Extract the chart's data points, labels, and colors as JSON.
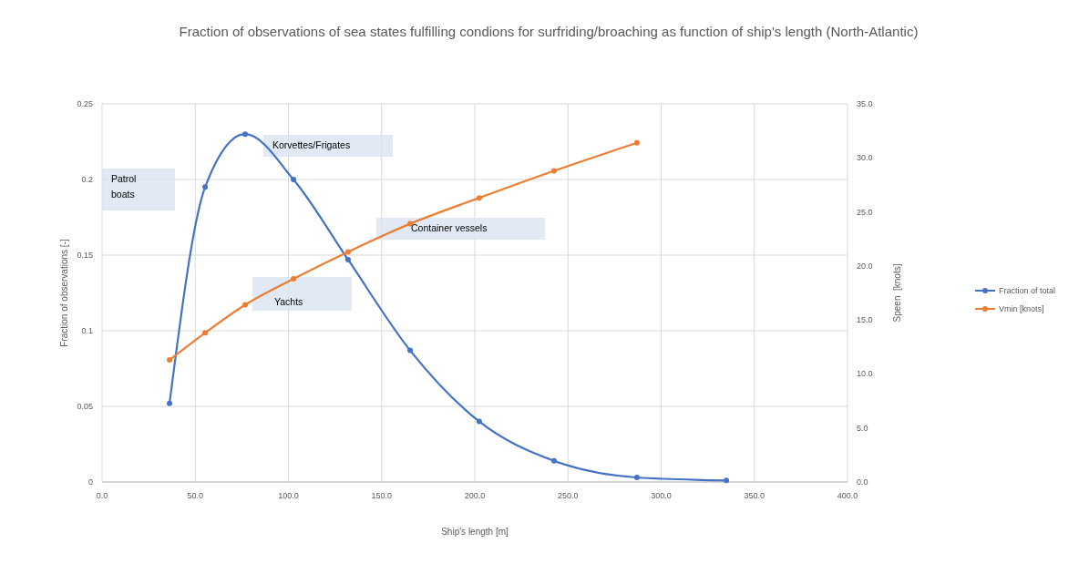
{
  "chart_data": {
    "type": "line",
    "title": "Fraction of observations of sea states fulfilling condions for surfriding/broaching as function of ship's length (North-Atlantic)",
    "xlabel": "Ship's length [m]",
    "ylabel": "Fraction of observations [-]",
    "y2label": "Speen  [knots]",
    "xlim": [
      0,
      400
    ],
    "xticks": [
      {
        "value": 0,
        "label": "0.0"
      },
      {
        "value": 50,
        "label": "50.0"
      },
      {
        "value": 100,
        "label": "100.0"
      },
      {
        "value": 150,
        "label": "150.0"
      },
      {
        "value": 200,
        "label": "200.0"
      },
      {
        "value": 250,
        "label": "250.0"
      },
      {
        "value": 300,
        "label": "300.0"
      },
      {
        "value": 350,
        "label": "350.0"
      },
      {
        "value": 400,
        "label": "400.0"
      }
    ],
    "ylim": [
      0,
      0.25
    ],
    "yticks": [
      0,
      0.05,
      0.1,
      0.15,
      0.2,
      0.25
    ],
    "y2lim": [
      0,
      35
    ],
    "y2ticks": [
      {
        "value": 0,
        "label": "0.0"
      },
      {
        "value": 5,
        "label": "5.0"
      },
      {
        "value": 10,
        "label": "10.0"
      },
      {
        "value": 15,
        "label": "15.0"
      },
      {
        "value": 20,
        "label": "20.0"
      },
      {
        "value": 25,
        "label": "25.0"
      },
      {
        "value": 30,
        "label": "30.0"
      },
      {
        "value": 35,
        "label": "35.0"
      }
    ],
    "grid": true,
    "legend": "right",
    "marker": "circle",
    "line_style": "solid",
    "series": [
      {
        "name": "Fraction of total",
        "color": "#4472c4",
        "x": [
          36.2,
          55.3,
          76.8,
          102.7,
          132,
          165.3,
          202.4,
          242.5,
          287,
          335
        ],
        "values": [
          0.052,
          0.195,
          0.23,
          0.2,
          0.147,
          0.087,
          0.04,
          0.014,
          0.003,
          0.001
        ]
      },
      {
        "name": "Vmin [knots]",
        "color": "#ed7d31",
        "axis": "y2",
        "x": [
          36.2,
          55.3,
          76.8,
          102.7,
          132,
          165.3,
          202.4,
          242.5,
          287
        ],
        "values": [
          11.3,
          13.8,
          16.4,
          18.8,
          21.3,
          23.9,
          26.3,
          28.8,
          31.4
        ]
      }
    ],
    "annotations": [
      "Patrol boats",
      "Korvettes/Frigates",
      "Container vessels",
      "Yachts"
    ]
  }
}
